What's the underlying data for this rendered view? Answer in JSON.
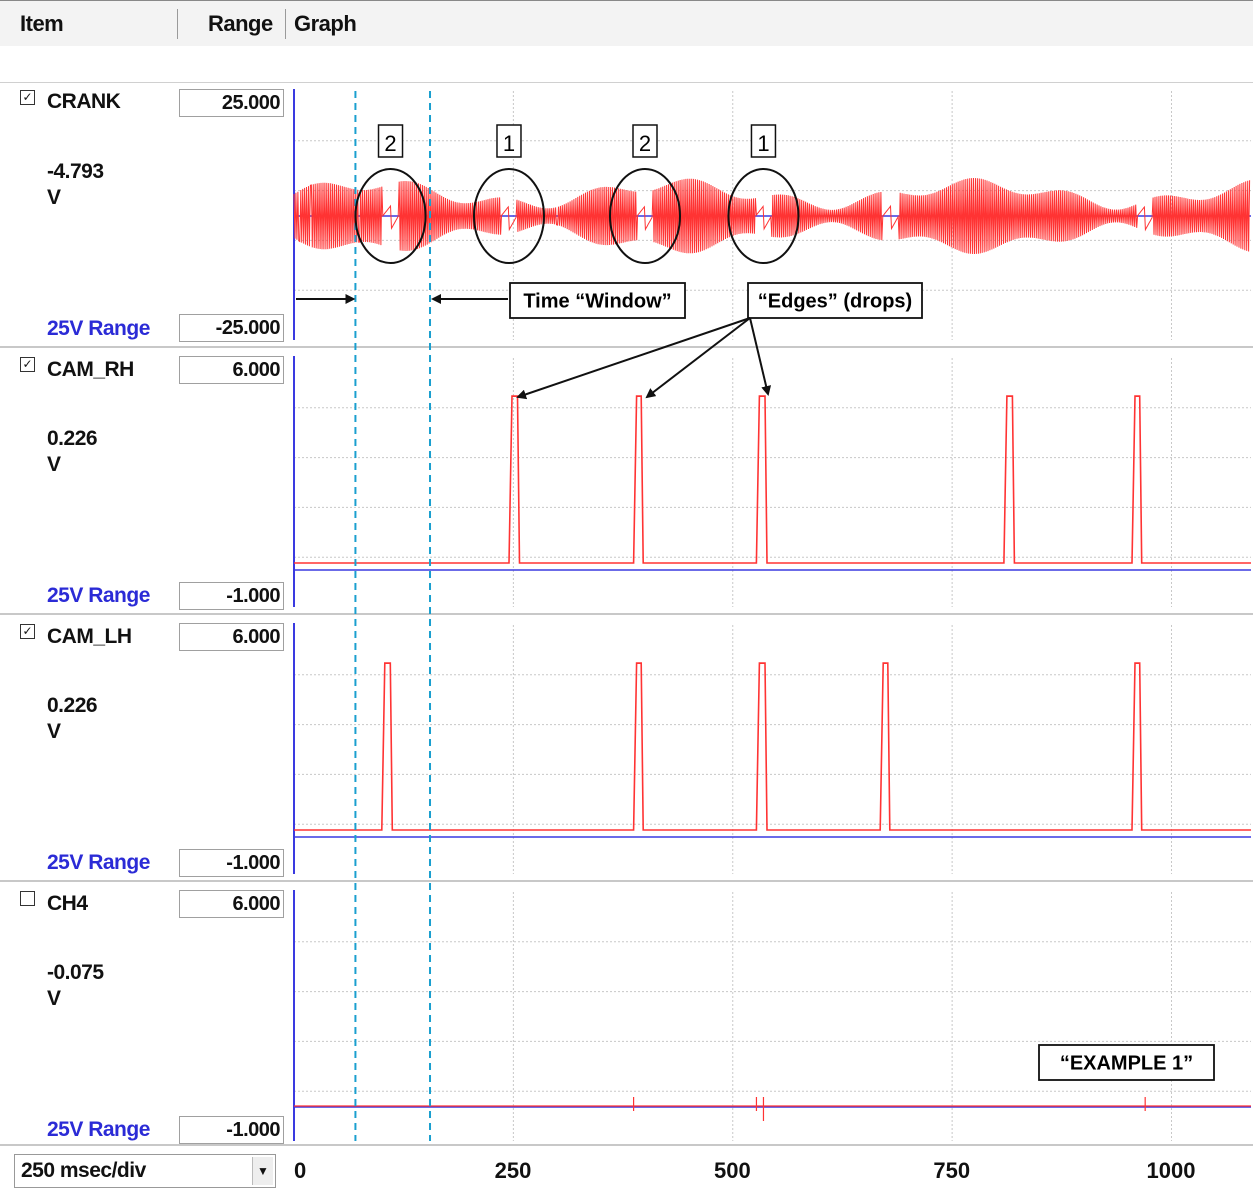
{
  "header": {
    "item_label": "Item",
    "range_label": "Range",
    "graph_label": "Graph"
  },
  "channels": [
    {
      "name": "CRANK",
      "checked": true,
      "max": "25.000",
      "reading": "-4.793",
      "unit": "V",
      "range_label": "25V Range",
      "min": "-25.000"
    },
    {
      "name": "CAM_RH",
      "checked": true,
      "max": "6.000",
      "reading": "0.226",
      "unit": "V",
      "range_label": "25V Range",
      "min": "-1.000"
    },
    {
      "name": "CAM_LH",
      "checked": true,
      "max": "6.000",
      "reading": "0.226",
      "unit": "V",
      "range_label": "25V Range",
      "min": "-1.000"
    },
    {
      "name": "CH4",
      "checked": false,
      "max": "6.000",
      "reading": "-0.075",
      "unit": "V",
      "range_label": "25V Range",
      "min": "-1.000"
    }
  ],
  "footer": {
    "timebase": "250 msec/div"
  },
  "annotations": {
    "window_label": "Time “Window”",
    "edges_label": "“Edges” (drops)",
    "example_label": "“EXAMPLE 1”",
    "gap_numbers": [
      "2",
      "1",
      "2",
      "1"
    ]
  },
  "colors": {
    "signal": "#ff3333",
    "baseline": "#3a3ae0",
    "window": "#1a9fcf",
    "range_text": "#2b2bd6"
  },
  "chart_data": {
    "type": "line",
    "xlim": [
      0,
      1090
    ],
    "x_ticks": [
      0,
      250,
      500,
      750,
      1000
    ],
    "grid": true,
    "window_ms": [
      70,
      155
    ],
    "crank_gaps_ms": [
      110,
      245,
      400,
      535,
      680,
      970
    ],
    "cam_rh_pulses_ms": [
      [
        245,
        257
      ],
      [
        387,
        398
      ],
      [
        527,
        539
      ],
      [
        809,
        821
      ],
      [
        955,
        966
      ]
    ],
    "cam_lh_pulses_ms": [
      [
        100,
        112
      ],
      [
        387,
        398
      ],
      [
        527,
        539
      ],
      [
        668,
        679
      ],
      [
        955,
        966
      ]
    ],
    "ch4_spikes_ms": [
      387,
      527,
      535,
      970
    ]
  }
}
